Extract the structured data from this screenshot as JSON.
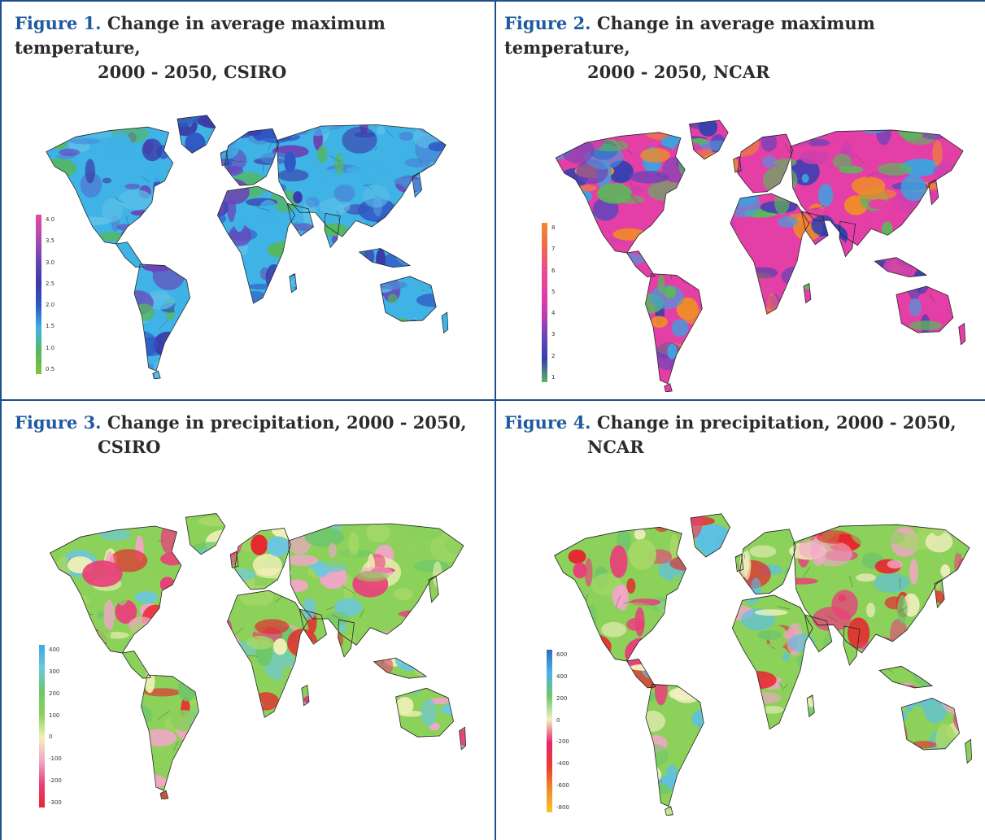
{
  "figures": [
    {
      "label": "Figure 1.",
      "title_line1": "Change in average maximum temperature,",
      "title_line2": "2000 - 2050, CSIRO",
      "legend": {
        "ticks": [
          "4.0",
          "3.5",
          "3.0",
          "2.5",
          "2.0",
          "1.5",
          "1.0",
          "0.5"
        ],
        "colors": [
          "#e8479e",
          "#b04bb0",
          "#6a44b8",
          "#3b3aa8",
          "#2f57c4",
          "#3fb2e6",
          "#55b85a",
          "#7dc242"
        ]
      },
      "palette": [
        "#3fb2e6",
        "#2f57c4",
        "#3b3aa8",
        "#55b85a",
        "#6a44b8",
        "#5cc0e8",
        "#4a86d6"
      ]
    },
    {
      "label": "Figure 2.",
      "title_line1": "Change in average maximum temperature,",
      "title_line2": "2000 - 2050, NCAR",
      "legend": {
        "ticks": [
          "8",
          "7",
          "6",
          "5",
          "4",
          "3",
          "2",
          "1"
        ],
        "colors": [
          "#f08a2a",
          "#ef6a4e",
          "#e84f8a",
          "#e43fa6",
          "#c23bb0",
          "#6a44b8",
          "#3340b0",
          "#5bb85a"
        ]
      },
      "palette": [
        "#e43fa6",
        "#cf3fae",
        "#6a44b8",
        "#3340b0",
        "#3fa0e0",
        "#5bb85a",
        "#f08a2a"
      ]
    },
    {
      "label": "Figure 3.",
      "title_line1": "Change in precipitation, 2000 - 2050,",
      "title_line2": "CSIRO",
      "legend": {
        "ticks": [
          "400",
          "300",
          "200",
          "100",
          "0",
          "-100",
          "-200",
          "-300"
        ],
        "colors": [
          "#3fa6e6",
          "#6cc7de",
          "#6ec66c",
          "#8bd15a",
          "#f3f0b8",
          "#f2a6c8",
          "#e8407a",
          "#e8252e"
        ]
      },
      "palette": [
        "#8bd15a",
        "#6ec66c",
        "#f3f0b8",
        "#a6d867",
        "#e8407a",
        "#f2a6c8",
        "#e8252e",
        "#6cc7de"
      ]
    },
    {
      "label": "Figure 4.",
      "title_line1": "Change in precipitation, 2000 - 2050,",
      "title_line2": "NCAR",
      "legend": {
        "ticks": [
          "600",
          "400",
          "200",
          "0",
          "-200",
          "-400",
          "-600",
          "-800"
        ],
        "colors": [
          "#2f6cc0",
          "#4cb2e6",
          "#6cc76c",
          "#f3f0c0",
          "#e8256e",
          "#ee3a2e",
          "#f08a2a",
          "#f6c52a"
        ]
      },
      "palette": [
        "#8bd15a",
        "#6ec66c",
        "#5cc0e6",
        "#f3f0c0",
        "#e8407a",
        "#f2a6c8",
        "#e8252e",
        "#a6d867"
      ]
    }
  ]
}
